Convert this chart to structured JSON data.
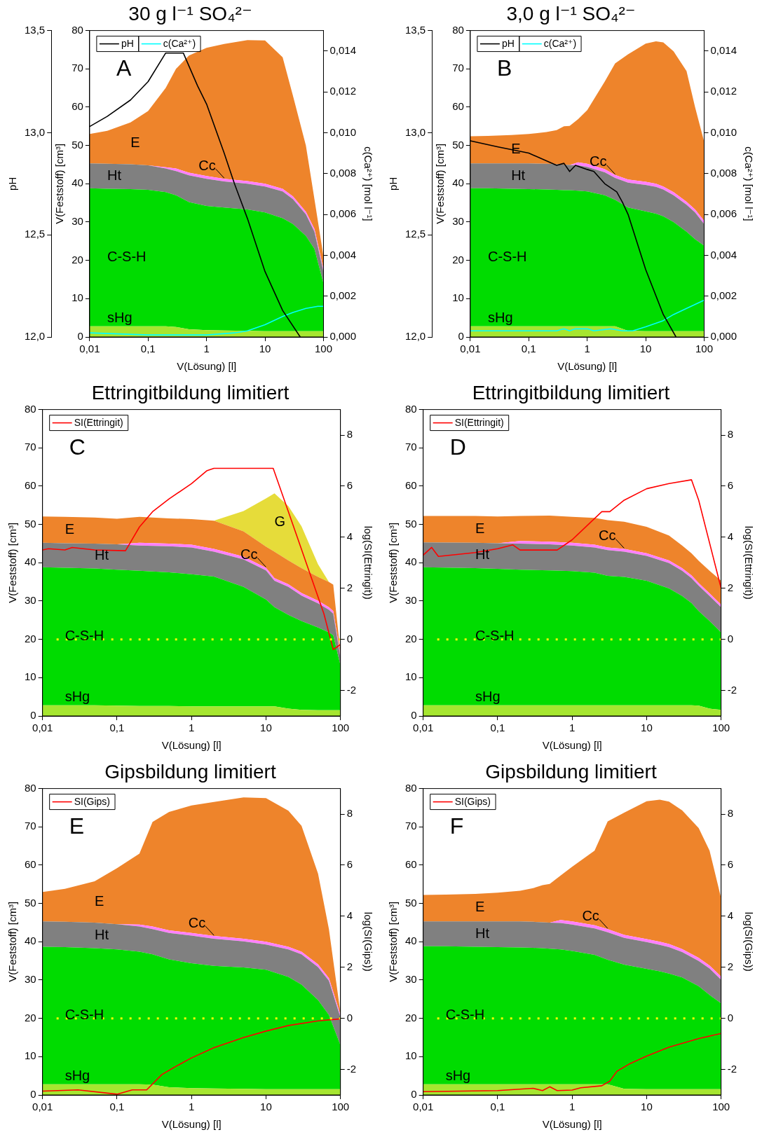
{
  "chart_data": [
    {
      "type": "area",
      "stacked": true,
      "title": "30 g l⁻¹ SO₄²⁻",
      "xlabel": "V(Lösung) [l]",
      "ylabel": "V(Feststoff) [cm³]",
      "y2label": "c(Ca²⁺) [mol l⁻¹]",
      "y3label": "pH",
      "log": "x",
      "grid": false,
      "legend": "top left",
      "marker": "none",
      "annotations": [
        "A"
      ],
      "xlim": [
        0.01,
        100
      ],
      "xticks": [
        {
          "value": 0.01,
          "label": "0,01"
        },
        {
          "value": 0.1,
          "label": "0,1"
        },
        {
          "value": 1,
          "label": "1"
        },
        {
          "value": 10,
          "label": "10"
        },
        {
          "value": 100,
          "label": "100"
        }
      ],
      "ylim": [
        0,
        80
      ],
      "yticks": [
        0,
        10,
        20,
        30,
        40,
        50,
        60,
        70,
        80
      ],
      "y2lim": [
        0,
        0.015
      ],
      "y2ticks": [
        {
          "value": 0,
          "label": "0,000"
        },
        {
          "value": 0.002,
          "label": "0,002"
        },
        {
          "value": 0.004,
          "label": "0,004"
        },
        {
          "value": 0.006,
          "label": "0,006"
        },
        {
          "value": 0.008,
          "label": "0,008"
        },
        {
          "value": 0.01,
          "label": "0,010"
        },
        {
          "value": 0.012,
          "label": "0,012"
        },
        {
          "value": 0.014,
          "label": "0,014"
        }
      ],
      "y3lim": [
        12,
        13.5
      ],
      "y3ticks": [
        {
          "value": 12,
          "label": "12,0"
        },
        {
          "value": 12.5,
          "label": "12,5"
        },
        {
          "value": 13,
          "label": "13,0"
        },
        {
          "value": 13.5,
          "label": "13,5"
        }
      ],
      "x": [
        0.01,
        0.02,
        0.05,
        0.1,
        0.2,
        0.3,
        0.5,
        1,
        2,
        5,
        10,
        20,
        30,
        50,
        70,
        100
      ],
      "series": [
        {
          "name": "sHg",
          "color": "#a6e630",
          "values": [
            2.8,
            2.8,
            2.8,
            2.8,
            2.8,
            2.6,
            2.0,
            1.8,
            1.7,
            1.6,
            1.5,
            1.5,
            1.5,
            1.5,
            1.5,
            1.5
          ]
        },
        {
          "name": "C-S-H",
          "color": "#00dc00",
          "values": [
            36.0,
            35.9,
            35.8,
            35.6,
            35.0,
            34.4,
            33.2,
            32.4,
            32.1,
            31.7,
            31.0,
            29.5,
            28.0,
            24.9,
            21.5,
            12.5
          ]
        },
        {
          "name": "Ht",
          "color": "#808080",
          "values": [
            6.5,
            6.5,
            6.5,
            6.4,
            6.2,
            6.3,
            7.0,
            7.1,
            6.8,
            6.7,
            6.8,
            7.0,
            6.5,
            5.6,
            4.5,
            3.0
          ]
        },
        {
          "name": "Cc",
          "color": "#ff80ff",
          "values": [
            0,
            0,
            0,
            0,
            0.3,
            0.7,
            0.7,
            0.7,
            0.7,
            0.7,
            0.7,
            0.7,
            0.7,
            0.7,
            0.7,
            0.7
          ]
        },
        {
          "name": "E",
          "color": "#ee842b",
          "values": [
            7.7,
            8.6,
            10.9,
            14.2,
            20.7,
            26.0,
            30.6,
            33.5,
            35.2,
            36.8,
            37.4,
            34.3,
            26.3,
            17.3,
            7.8,
            3.3
          ]
        },
        {
          "name": "pH",
          "type": "line",
          "axis": "y3",
          "color": "#000000",
          "x": [
            0.01,
            0.02,
            0.05,
            0.1,
            0.2,
            0.4,
            0.7,
            1,
            2,
            3,
            5,
            10,
            20,
            40
          ],
          "values": [
            13.03,
            13.08,
            13.16,
            13.25,
            13.39,
            13.39,
            13.23,
            13.14,
            12.9,
            12.75,
            12.58,
            12.32,
            12.13,
            12.0
          ]
        },
        {
          "name": "c(Ca²⁺)",
          "type": "line",
          "axis": "y2",
          "color": "#00ffff",
          "x": [
            0.01,
            0.1,
            0.3,
            1,
            3,
            5,
            10,
            20,
            30,
            50,
            80,
            100
          ],
          "values": [
            0.0002,
            0.0001,
            0.0001,
            0.0001,
            0.0002,
            0.0003,
            0.0006,
            0.001,
            0.0012,
            0.0014,
            0.0015,
            0.0015
          ]
        }
      ]
    },
    {
      "type": "area",
      "stacked": true,
      "title": "3,0 g l⁻¹ SO₄²⁻",
      "xlabel": "V(Lösung) [l]",
      "ylabel": "V(Feststoff) [cm³]",
      "y2label": "c(Ca²⁺) [mol l⁻¹]",
      "y3label": "pH",
      "log": "x",
      "grid": false,
      "legend": "top left",
      "marker": "none",
      "annotations": [
        "B"
      ],
      "xlim": [
        0.01,
        100
      ],
      "xticks": [
        {
          "value": 0.01,
          "label": "0,01"
        },
        {
          "value": 0.1,
          "label": "0,1"
        },
        {
          "value": 1,
          "label": "1"
        },
        {
          "value": 10,
          "label": "10"
        },
        {
          "value": 100,
          "label": "100"
        }
      ],
      "ylim": [
        0,
        80
      ],
      "yticks": [
        0,
        10,
        20,
        30,
        40,
        50,
        60,
        70,
        80
      ],
      "y2lim": [
        0,
        0.015
      ],
      "y2ticks": [
        {
          "value": 0,
          "label": "0,000"
        },
        {
          "value": 0.002,
          "label": "0,002"
        },
        {
          "value": 0.004,
          "label": "0,004"
        },
        {
          "value": 0.006,
          "label": "0,006"
        },
        {
          "value": 0.008,
          "label": "0,008"
        },
        {
          "value": 0.01,
          "label": "0,010"
        },
        {
          "value": 0.012,
          "label": "0,012"
        },
        {
          "value": 0.014,
          "label": "0,014"
        }
      ],
      "y3lim": [
        12,
        13.5
      ],
      "y3ticks": [
        {
          "value": 12,
          "label": "12,0"
        },
        {
          "value": 12.5,
          "label": "12,5"
        },
        {
          "value": 13,
          "label": "13,0"
        },
        {
          "value": 13.5,
          "label": "13,5"
        }
      ],
      "x": [
        0.01,
        0.02,
        0.05,
        0.1,
        0.2,
        0.3,
        0.4,
        0.5,
        0.7,
        1,
        2,
        3,
        5,
        10,
        15,
        20,
        30,
        50,
        70,
        100
      ],
      "series": [
        {
          "name": "sHg",
          "color": "#a6e630",
          "values": [
            2.8,
            2.8,
            2.8,
            2.8,
            2.8,
            2.8,
            2.8,
            2.8,
            2.8,
            2.8,
            2.8,
            2.8,
            1.6,
            1.5,
            1.5,
            1.5,
            1.5,
            1.5,
            1.5,
            1.5
          ]
        },
        {
          "name": "C-S-H",
          "color": "#00dc00",
          "values": [
            36.0,
            36.0,
            35.9,
            35.8,
            35.7,
            35.6,
            35.5,
            35.5,
            35.4,
            35.2,
            34.2,
            33.0,
            32.2,
            31.3,
            30.7,
            30.0,
            28.5,
            26.0,
            24.0,
            22.3
          ]
        },
        {
          "name": "Ht",
          "color": "#808080",
          "values": [
            6.5,
            6.5,
            6.6,
            6.7,
            6.7,
            6.7,
            6.7,
            6.6,
            6.6,
            6.4,
            6.0,
            5.7,
            6.5,
            6.9,
            7.0,
            7.0,
            7.0,
            7.0,
            7.0,
            5.7
          ]
        },
        {
          "name": "Cc",
          "color": "#ff80ff",
          "values": [
            0,
            0,
            0,
            0,
            0,
            0,
            0,
            0,
            0.8,
            0.8,
            0.8,
            0.8,
            0.8,
            0.8,
            0.8,
            0.8,
            0.8,
            0.8,
            0.8,
            0.8
          ]
        },
        {
          "name": "E",
          "color": "#ee842b",
          "values": [
            7.1,
            7.2,
            7.4,
            7.7,
            8.3,
            8.9,
            10.0,
            10.2,
            11.3,
            14.0,
            22.9,
            29.1,
            32.7,
            36.1,
            37.2,
            37.6,
            36.8,
            34.1,
            26.7,
            20.7
          ]
        },
        {
          "name": "pH",
          "type": "line",
          "axis": "y3",
          "color": "#000000",
          "x": [
            0.01,
            0.03,
            0.1,
            0.3,
            0.4,
            0.5,
            0.63,
            1,
            1.3,
            2,
            3.2,
            4,
            5,
            10,
            20,
            33
          ],
          "values": [
            12.96,
            12.93,
            12.9,
            12.84,
            12.85,
            12.81,
            12.84,
            12.82,
            12.81,
            12.75,
            12.71,
            12.66,
            12.6,
            12.33,
            12.11,
            12.0
          ]
        },
        {
          "name": "c(Ca²⁺)",
          "type": "line",
          "axis": "y2",
          "color": "#00ffff",
          "x": [
            0.01,
            0.3,
            0.4,
            0.5,
            0.63,
            1,
            1.3,
            2.5,
            4,
            6,
            10,
            20,
            30,
            50,
            100
          ],
          "values": [
            0.0003,
            0.0003,
            0.0004,
            0.0003,
            0.0004,
            0.0004,
            0.0003,
            0.0004,
            0.0003,
            0.0003,
            0.0005,
            0.0008,
            0.0011,
            0.0014,
            0.0018
          ]
        }
      ]
    },
    {
      "type": "area",
      "stacked": true,
      "title": "Ettringitbildung limitiert",
      "xlabel": "V(Lösung) [l]",
      "ylabel": "V(Feststoff) [cm³]",
      "y2label": "log(SI(Ettringit))",
      "log": "x",
      "grid": false,
      "legend": "top left",
      "marker": "none",
      "annotations": [
        "C"
      ],
      "xlim": [
        0.01,
        100
      ],
      "xticks": [
        {
          "value": 0.01,
          "label": "0,01"
        },
        {
          "value": 0.1,
          "label": "0,1"
        },
        {
          "value": 1,
          "label": "1"
        },
        {
          "value": 10,
          "label": "10"
        },
        {
          "value": 100,
          "label": "100"
        }
      ],
      "ylim": [
        0,
        80
      ],
      "yticks": [
        0,
        10,
        20,
        30,
        40,
        50,
        60,
        70,
        80
      ],
      "y2lim": [
        -3,
        9
      ],
      "y2ticks": [
        -2,
        0,
        2,
        4,
        6,
        8
      ],
      "ref_lines": [
        {
          "axis": "y2",
          "value": 0,
          "color": "#ffff00",
          "line_style": "dotted"
        }
      ],
      "x": [
        0.01,
        0.02,
        0.05,
        0.1,
        0.2,
        0.5,
        1,
        2,
        5,
        10,
        13,
        20,
        30,
        50,
        70,
        80,
        100
      ],
      "series": [
        {
          "name": "sHg",
          "color": "#a6e630",
          "values": [
            2.8,
            2.8,
            2.8,
            2.7,
            2.6,
            2.6,
            2.5,
            2.5,
            2.5,
            2.5,
            2.5,
            1.9,
            1.6,
            1.5,
            1.5,
            1.5,
            1.5
          ]
        },
        {
          "name": "C-S-H",
          "color": "#00dc00",
          "values": [
            36.0,
            35.9,
            35.7,
            35.5,
            35.3,
            34.9,
            34.5,
            33.9,
            31.2,
            27.9,
            25.9,
            24.5,
            23.2,
            21.6,
            20.3,
            19.6,
            11.7
          ]
        },
        {
          "name": "Ht",
          "color": "#808080",
          "values": [
            6.4,
            6.4,
            6.5,
            6.6,
            6.6,
            6.8,
            7.0,
            6.5,
            7.2,
            7.6,
            6.9,
            7.3,
            6.6,
            6.3,
            5.9,
            5.6,
            2.0
          ]
        },
        {
          "name": "Cc",
          "color": "#ff80ff",
          "values": [
            0,
            0,
            0,
            0,
            0.7,
            0.7,
            0.7,
            0.7,
            0.7,
            0.7,
            0.7,
            0.7,
            0.7,
            0.7,
            0.7,
            0.7,
            0.7
          ]
        },
        {
          "name": "E",
          "color": "#ee842b",
          "values": [
            6.9,
            6.9,
            6.8,
            6.7,
            6.8,
            6.6,
            6.7,
            7.4,
            6.6,
            5.5,
            6.9,
            6.2,
            6.5,
            6.2,
            6.6,
            6.9,
            0.6
          ]
        },
        {
          "name": "G",
          "color": "#e6dc3a",
          "values": [
            0,
            0,
            0,
            0,
            0,
            0,
            0,
            0,
            5.3,
            12.6,
            15.2,
            14.2,
            10.9,
            3.3,
            0,
            0,
            0
          ]
        },
        {
          "name": "SI(Ettringit)",
          "type": "line",
          "axis": "y2",
          "color": "#ff0000",
          "x": [
            0.01,
            0.012,
            0.02,
            0.025,
            0.05,
            0.13,
            0.2,
            0.3,
            0.5,
            1,
            1.6,
            2,
            12.5,
            20,
            60,
            80,
            100
          ],
          "values": [
            3.5,
            3.55,
            3.5,
            3.6,
            3.5,
            3.47,
            4.4,
            5.0,
            5.5,
            6.1,
            6.6,
            6.7,
            6.7,
            5.0,
            1.0,
            -0.4,
            -0.2
          ]
        }
      ]
    },
    {
      "type": "area",
      "stacked": true,
      "title": "Ettringitbildung limitiert",
      "xlabel": "V(Lösung) [l]",
      "ylabel": "V(Feststoff) [cm³]",
      "y2label": "log(SI(Ettringit))",
      "log": "x",
      "grid": false,
      "legend": "top left",
      "marker": "none",
      "annotations": [
        "D"
      ],
      "xlim": [
        0.01,
        100
      ],
      "xticks": [
        {
          "value": 0.01,
          "label": "0,01"
        },
        {
          "value": 0.1,
          "label": "0,1"
        },
        {
          "value": 1,
          "label": "1"
        },
        {
          "value": 10,
          "label": "10"
        },
        {
          "value": 100,
          "label": "100"
        }
      ],
      "ylim": [
        0,
        80
      ],
      "yticks": [
        0,
        10,
        20,
        30,
        40,
        50,
        60,
        70,
        80
      ],
      "y2lim": [
        -3,
        9
      ],
      "y2ticks": [
        -2,
        0,
        2,
        4,
        6,
        8
      ],
      "ref_lines": [
        {
          "axis": "y2",
          "value": 0,
          "color": "#ffff00",
          "line_style": "dotted"
        }
      ],
      "x": [
        0.01,
        0.05,
        0.1,
        0.2,
        0.5,
        1,
        2,
        3,
        5,
        10,
        20,
        30,
        40,
        50,
        70,
        100
      ],
      "series": [
        {
          "name": "sHg",
          "color": "#a6e630",
          "values": [
            2.8,
            2.8,
            2.8,
            2.8,
            2.8,
            2.8,
            2.8,
            2.8,
            2.8,
            2.8,
            2.8,
            2.8,
            2.8,
            2.7,
            1.9,
            1.6
          ]
        },
        {
          "name": "C-S-H",
          "color": "#00dc00",
          "values": [
            36.0,
            35.8,
            35.6,
            35.4,
            35.2,
            35.0,
            34.6,
            33.8,
            33.5,
            32.5,
            30.5,
            28.5,
            26.7,
            24.7,
            22.9,
            20.2
          ]
        },
        {
          "name": "Ht",
          "color": "#808080",
          "values": [
            6.5,
            6.6,
            6.7,
            6.8,
            6.8,
            6.7,
            6.6,
            6.7,
            6.6,
            6.5,
            6.6,
            6.6,
            6.5,
            6.6,
            6.5,
            6.6
          ]
        },
        {
          "name": "Cc",
          "color": "#ff80ff",
          "values": [
            0,
            0,
            0,
            0.7,
            0.7,
            0.7,
            0.7,
            0.7,
            0.7,
            0.7,
            0.7,
            0.7,
            0.7,
            0.7,
            0.7,
            0.7
          ]
        },
        {
          "name": "E",
          "color": "#ee842b",
          "values": [
            6.9,
            7.0,
            7.0,
            6.5,
            6.8,
            6.8,
            7.0,
            7.1,
            7.1,
            6.9,
            6.5,
            5.9,
            5.8,
            5.8,
            5.9,
            6.2
          ]
        },
        {
          "name": "SI(Ettringit)",
          "type": "line",
          "axis": "y2",
          "color": "#ff0000",
          "x": [
            0.01,
            0.013,
            0.016,
            0.05,
            0.1,
            0.16,
            0.2,
            0.63,
            1,
            2.5,
            3.2,
            5,
            10,
            20,
            40,
            50,
            100
          ],
          "values": [
            3.3,
            3.6,
            3.25,
            3.4,
            3.55,
            3.7,
            3.5,
            3.5,
            3.9,
            5.0,
            5.0,
            5.45,
            5.9,
            6.1,
            6.25,
            5.45,
            2.0
          ]
        }
      ]
    },
    {
      "type": "area",
      "stacked": true,
      "title": "Gipsbildung limitiert",
      "xlabel": "V(Lösung) [l]",
      "ylabel": "V(Feststoff) [cm³]",
      "y2label": "log(SI(Gips))",
      "log": "x",
      "grid": false,
      "legend": "top left",
      "marker": "none",
      "annotations": [
        "E"
      ],
      "xlim": [
        0.01,
        100
      ],
      "xticks": [
        {
          "value": 0.01,
          "label": "0,01"
        },
        {
          "value": 0.1,
          "label": "0,1"
        },
        {
          "value": 1,
          "label": "1"
        },
        {
          "value": 10,
          "label": "10"
        },
        {
          "value": 100,
          "label": "100"
        }
      ],
      "ylim": [
        0,
        80
      ],
      "yticks": [
        0,
        10,
        20,
        30,
        40,
        50,
        60,
        70,
        80
      ],
      "y2lim": [
        -3,
        9
      ],
      "y2ticks": [
        -2,
        0,
        2,
        4,
        6,
        8
      ],
      "ref_lines": [
        {
          "axis": "y2",
          "value": 0,
          "color": "#ffff00",
          "line_style": "dotted"
        }
      ],
      "x": [
        0.01,
        0.02,
        0.05,
        0.1,
        0.2,
        0.3,
        0.5,
        1,
        2,
        5,
        10,
        20,
        30,
        50,
        70,
        100
      ],
      "series": [
        {
          "name": "sHg",
          "color": "#a6e630",
          "values": [
            2.8,
            2.8,
            2.8,
            2.8,
            2.8,
            2.7,
            2.0,
            1.8,
            1.7,
            1.6,
            1.5,
            1.5,
            1.5,
            1.5,
            1.5,
            1.5
          ]
        },
        {
          "name": "C-S-H",
          "color": "#00dc00",
          "values": [
            35.9,
            35.8,
            35.5,
            35.2,
            34.6,
            34.0,
            33.4,
            32.6,
            32.0,
            31.7,
            31.2,
            29.3,
            27.3,
            23.3,
            19.4,
            11.5
          ]
        },
        {
          "name": "Ht",
          "color": "#808080",
          "values": [
            6.6,
            6.6,
            6.7,
            6.6,
            6.6,
            6.6,
            6.9,
            7.2,
            7.1,
            6.8,
            6.6,
            7.2,
            7.9,
            8.6,
            8.9,
            7.2
          ]
        },
        {
          "name": "Cc",
          "color": "#ff80ff",
          "values": [
            0,
            0,
            0,
            0,
            0.5,
            0.7,
            0.7,
            0.7,
            0.7,
            0.7,
            0.7,
            0.7,
            0.7,
            0.7,
            0.7,
            0.7
          ]
        },
        {
          "name": "E",
          "color": "#ee842b",
          "values": [
            7.7,
            8.6,
            10.8,
            14.6,
            18.5,
            27.3,
            30.9,
            33.3,
            35.0,
            36.9,
            37.5,
            35.5,
            32.9,
            23.7,
            12.8,
            0.5
          ]
        },
        {
          "name": "SI(Gips)",
          "type": "line",
          "axis": "y2",
          "color": "#ff0000",
          "x": [
            0.01,
            0.03,
            0.1,
            0.16,
            0.25,
            0.4,
            0.6,
            1,
            2,
            5,
            10,
            20,
            50,
            100
          ],
          "values": [
            -2.85,
            -2.8,
            -2.97,
            -2.8,
            -2.8,
            -2.2,
            -1.9,
            -1.55,
            -1.15,
            -0.75,
            -0.5,
            -0.28,
            -0.1,
            -0.02
          ]
        }
      ]
    },
    {
      "type": "area",
      "stacked": true,
      "title": "Gipsbildung limitiert",
      "xlabel": "V(Lösung) [l]",
      "ylabel": "V(Feststoff) [cm³]",
      "y2label": "log(SI(Gips))",
      "log": "x",
      "grid": false,
      "legend": "top left",
      "marker": "none",
      "annotations": [
        "F"
      ],
      "xlim": [
        0.01,
        100
      ],
      "xticks": [
        {
          "value": 0.01,
          "label": "0,01"
        },
        {
          "value": 0.1,
          "label": "0,1"
        },
        {
          "value": 1,
          "label": "1"
        },
        {
          "value": 10,
          "label": "10"
        },
        {
          "value": 100,
          "label": "100"
        }
      ],
      "ylim": [
        0,
        80
      ],
      "yticks": [
        0,
        10,
        20,
        30,
        40,
        50,
        60,
        70,
        80
      ],
      "y2lim": [
        -3,
        9
      ],
      "y2ticks": [
        -2,
        0,
        2,
        4,
        6,
        8
      ],
      "ref_lines": [
        {
          "axis": "y2",
          "value": 0,
          "color": "#ffff00",
          "line_style": "dotted"
        }
      ],
      "x": [
        0.01,
        0.02,
        0.05,
        0.1,
        0.2,
        0.3,
        0.4,
        0.5,
        0.7,
        1,
        2,
        3,
        5,
        10,
        15,
        20,
        30,
        50,
        70,
        100
      ],
      "series": [
        {
          "name": "sHg",
          "color": "#a6e630",
          "values": [
            2.8,
            2.8,
            2.8,
            2.8,
            2.8,
            2.8,
            2.8,
            2.8,
            2.8,
            2.8,
            2.8,
            2.8,
            1.6,
            1.5,
            1.5,
            1.5,
            1.5,
            1.5,
            1.5,
            1.5
          ]
        },
        {
          "name": "C-S-H",
          "color": "#00dc00",
          "values": [
            36.0,
            36.0,
            35.9,
            35.8,
            35.7,
            35.6,
            35.5,
            35.4,
            35.2,
            34.8,
            33.8,
            32.5,
            32.4,
            31.4,
            30.8,
            30.2,
            29.2,
            26.9,
            24.6,
            22.4
          ]
        },
        {
          "name": "Ht",
          "color": "#808080",
          "values": [
            6.5,
            6.5,
            6.6,
            6.7,
            6.8,
            6.8,
            6.8,
            6.8,
            6.9,
            6.9,
            6.9,
            7.2,
            7.0,
            7.0,
            6.9,
            6.9,
            6.6,
            6.6,
            6.9,
            6.2
          ]
        },
        {
          "name": "Cc",
          "color": "#ff80ff",
          "values": [
            0,
            0,
            0,
            0,
            0,
            0,
            0,
            0,
            0.8,
            0.8,
            0.8,
            0.8,
            0.8,
            0.8,
            0.8,
            0.8,
            0.8,
            0.8,
            0.8,
            0.8
          ]
        },
        {
          "name": "E",
          "color": "#ee842b",
          "values": [
            6.9,
            7.0,
            7.2,
            7.5,
            8.0,
            8.8,
            9.7,
            10.1,
            11.6,
            14.3,
            19.5,
            28.1,
            31.9,
            36.0,
            37.1,
            37.2,
            36.2,
            33.9,
            30.0,
            20.5
          ]
        },
        {
          "name": "SI(Gips)",
          "type": "line",
          "axis": "y2",
          "color": "#ff0000",
          "x": [
            0.01,
            0.1,
            0.3,
            0.4,
            0.5,
            0.63,
            1,
            1.3,
            2.5,
            3.2,
            4,
            6,
            10,
            20,
            50,
            100
          ],
          "values": [
            -2.87,
            -2.83,
            -2.74,
            -2.83,
            -2.68,
            -2.83,
            -2.81,
            -2.72,
            -2.64,
            -2.46,
            -2.07,
            -1.77,
            -1.48,
            -1.13,
            -0.79,
            -0.59
          ]
        }
      ]
    }
  ]
}
